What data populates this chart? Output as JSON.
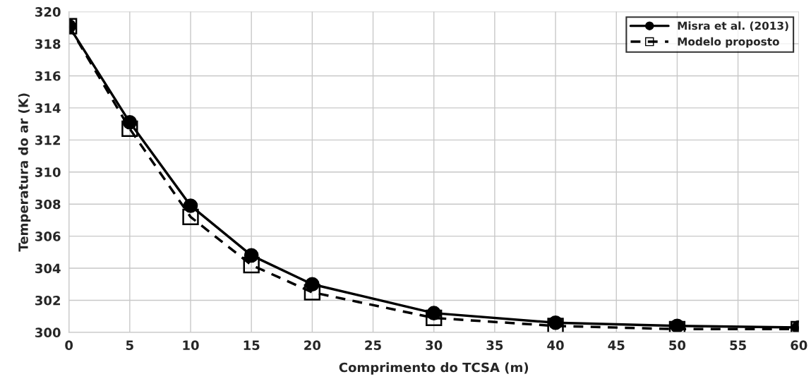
{
  "chart_data": {
    "type": "line",
    "xlabel": "Comprimento do TCSA (m)",
    "ylabel": "Temperatura do ar (K)",
    "x": [
      0,
      5,
      10,
      15,
      20,
      30,
      40,
      50,
      60
    ],
    "series": [
      {
        "name": "Misra et al. (2013)",
        "color": "#000000",
        "marker": "circle",
        "line_style": "solid",
        "values": [
          319.1,
          313.1,
          307.9,
          304.8,
          303.0,
          301.2,
          300.6,
          300.4,
          300.3
        ]
      },
      {
        "name": "Modelo proposto",
        "color": "#000000",
        "marker": "square",
        "line_style": "dashed",
        "values": [
          319.1,
          312.7,
          307.2,
          304.2,
          302.5,
          300.9,
          300.4,
          300.2,
          300.2
        ]
      }
    ],
    "xlim": [
      0,
      60
    ],
    "xticks": [
      0,
      5,
      10,
      15,
      20,
      25,
      30,
      35,
      40,
      45,
      50,
      55,
      60
    ],
    "ylim": [
      300,
      320
    ],
    "yticks": [
      300,
      302,
      304,
      306,
      308,
      310,
      312,
      314,
      316,
      318,
      320
    ],
    "grid": true,
    "legend": "top right"
  }
}
